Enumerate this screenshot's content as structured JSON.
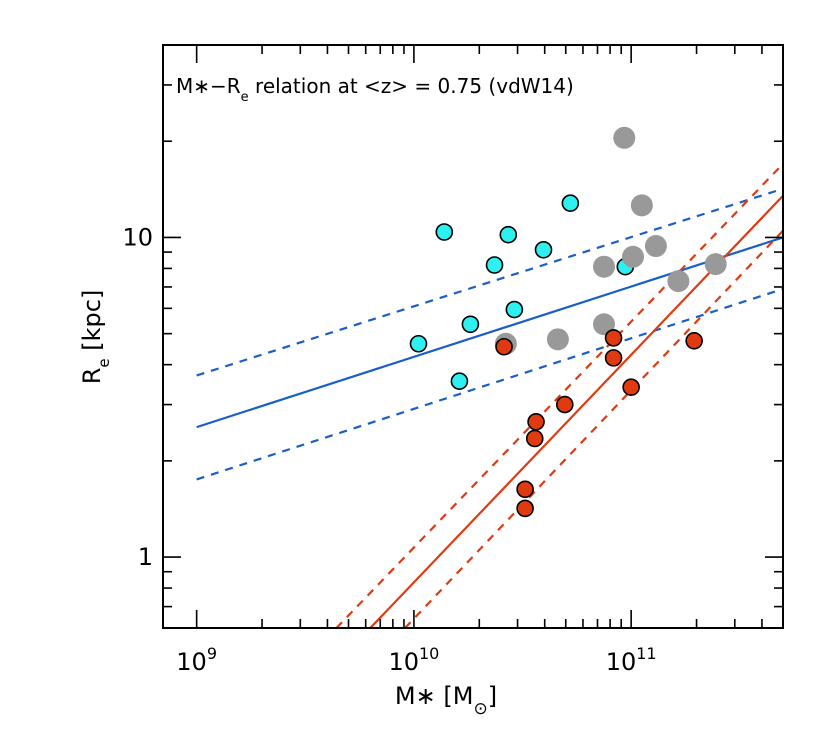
{
  "chart_data": {
    "type": "scatter",
    "title": "",
    "annotation": "M∗−Rₑ relation at <z> = 0.75 (vdW14)",
    "annotation_parts": {
      "a": "M∗−R",
      "sub": "e",
      "b": " relation at <z> = 0.75 (vdW14)"
    },
    "xlabel": "M∗ [M⊙]",
    "xlabel_parts": {
      "a": "M∗ [M",
      "sub": "⊙",
      "b": "]"
    },
    "ylabel": "Rₑ [kpc]",
    "ylabel_parts": {
      "a": "R",
      "sub": "e",
      "b": " [kpc]"
    },
    "xscale": "log",
    "yscale": "log",
    "xlim": [
      700000000.0,
      500000000000.0
    ],
    "ylim": [
      0.6,
      40
    ],
    "x_ticks": [
      {
        "value": 1000000000.0,
        "base": "10",
        "exp": "9"
      },
      {
        "value": 10000000000.0,
        "base": "10",
        "exp": "10"
      },
      {
        "value": 100000000000.0,
        "base": "10",
        "exp": "11"
      }
    ],
    "y_ticks": [
      {
        "value": 1,
        "label": "1"
      },
      {
        "value": 10,
        "label": "10"
      }
    ],
    "colors": {
      "blue": "#1a5fc8",
      "red": "#e03a10",
      "cyan": "#2ef0f0",
      "gray": "#999999"
    },
    "lines": [
      {
        "color": "blue",
        "style": "solid",
        "x": [
          1000000000.0,
          500000000000.0
        ],
        "y": [
          2.55,
          10.0
        ]
      },
      {
        "color": "blue",
        "style": "dashed",
        "x": [
          1000000000.0,
          500000000000.0
        ],
        "y": [
          3.7,
          14.2
        ]
      },
      {
        "color": "blue",
        "style": "dashed",
        "x": [
          1000000000.0,
          500000000000.0
        ],
        "y": [
          1.75,
          6.9
        ]
      },
      {
        "color": "red",
        "style": "solid",
        "x": [
          6300000000.0,
          500000000000.0
        ],
        "y": [
          0.6,
          13.5
        ]
      },
      {
        "color": "red",
        "style": "dashed",
        "x": [
          4400000000.0,
          500000000000.0
        ],
        "y": [
          0.6,
          17.0
        ]
      },
      {
        "color": "red",
        "style": "dashed",
        "x": [
          9100000000.0,
          500000000000.0
        ],
        "y": [
          0.6,
          10.5
        ]
      }
    ],
    "series": [
      {
        "color": "cyan",
        "points": [
          [
            10500000000.0,
            4.65
          ],
          [
            13800000000.0,
            10.4
          ],
          [
            16200000000.0,
            3.55
          ],
          [
            18200000000.0,
            5.35
          ],
          [
            23500000000.0,
            8.2
          ],
          [
            27200000000.0,
            10.2
          ],
          [
            29000000000.0,
            5.95
          ],
          [
            39500000000.0,
            9.15
          ],
          [
            52500000000.0,
            12.8
          ],
          [
            94000000000.0,
            8.1
          ]
        ]
      },
      {
        "color": "gray",
        "points": [
          [
            26500000000.0,
            4.65
          ],
          [
            46000000000.0,
            4.8
          ],
          [
            75000000000.0,
            5.35
          ],
          [
            75000000000.0,
            8.1
          ],
          [
            93000000000.0,
            20.5
          ],
          [
            102000000000.0,
            8.7
          ],
          [
            112000000000.0,
            12.6
          ],
          [
            130000000000.0,
            9.4
          ],
          [
            165000000000.0,
            7.3
          ],
          [
            245000000000.0,
            8.25
          ]
        ]
      },
      {
        "color": "red",
        "points": [
          [
            26000000000.0,
            4.55
          ],
          [
            32500000000.0,
            1.63
          ],
          [
            32500000000.0,
            1.42
          ],
          [
            36000000000.0,
            2.35
          ],
          [
            36500000000.0,
            2.65
          ],
          [
            49500000000.0,
            3.0
          ],
          [
            83000000000.0,
            4.85
          ],
          [
            83000000000.0,
            4.2
          ],
          [
            100000000000.0,
            3.4
          ],
          [
            195000000000.0,
            4.75
          ]
        ]
      }
    ]
  }
}
